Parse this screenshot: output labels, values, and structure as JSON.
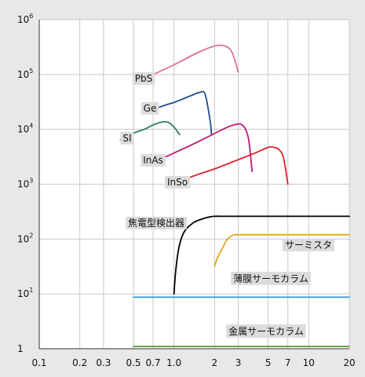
{
  "chart_data": {
    "type": "line",
    "title": "",
    "xlabel": "",
    "ylabel": "",
    "x_scale": "log",
    "y_scale": "log",
    "xlim": [
      0.1,
      20
    ],
    "ylim": [
      1,
      1000000
    ],
    "grid": true,
    "x_ticks": [
      {
        "value": 0.1,
        "label": "0.1"
      },
      {
        "value": 0.2,
        "label": "0.2"
      },
      {
        "value": 0.3,
        "label": "0.3"
      },
      {
        "value": 0.5,
        "label": "0.5"
      },
      {
        "value": 0.7,
        "label": "0.7"
      },
      {
        "value": 1.0,
        "label": "1.0"
      },
      {
        "value": 2,
        "label": "2"
      },
      {
        "value": 3,
        "label": "3"
      },
      {
        "value": 5,
        "label": "5"
      },
      {
        "value": 7,
        "label": "7"
      },
      {
        "value": 10,
        "label": "10"
      },
      {
        "value": 20,
        "label": "20"
      }
    ],
    "y_ticks": [
      {
        "value": 1,
        "base": "1",
        "exp": ""
      },
      {
        "value": 10,
        "base": "10",
        "exp": "1"
      },
      {
        "value": 100,
        "base": "10",
        "exp": "2"
      },
      {
        "value": 1000,
        "base": "10",
        "exp": "3"
      },
      {
        "value": 10000,
        "base": "10",
        "exp": "4"
      },
      {
        "value": 100000,
        "base": "10",
        "exp": "5"
      },
      {
        "value": 1000000,
        "base": "10",
        "exp": "6"
      }
    ],
    "series": [
      {
        "name": "PbS",
        "color": "#d9709f",
        "x": [
          0.7,
          1.0,
          1.5,
          2.0,
          2.4,
          2.7,
          3.0
        ],
        "y": [
          100000,
          150000,
          250000,
          330000,
          330000,
          250000,
          110000
        ]
      },
      {
        "name": "Ge",
        "color": "#1c4d94",
        "x": [
          0.6,
          0.8,
          1.0,
          1.2,
          1.4,
          1.55,
          1.7,
          1.85,
          1.9
        ],
        "y": [
          20000,
          26000,
          31000,
          37000,
          43000,
          47000,
          44000,
          15000,
          8000
        ]
      },
      {
        "name": "SI",
        "color": "#2e7d5e",
        "x": [
          0.4,
          0.5,
          0.6,
          0.7,
          0.8,
          0.9,
          1.0,
          1.1
        ],
        "y": [
          6500,
          8500,
          10000,
          12000,
          13500,
          13500,
          11000,
          8000
        ]
      },
      {
        "name": "InAs",
        "color": "#c2187a",
        "x": [
          0.7,
          1.0,
          1.5,
          2.0,
          2.5,
          3.0,
          3.2,
          3.4,
          3.6,
          3.8
        ],
        "y": [
          2500,
          3700,
          5900,
          8400,
          11000,
          12500,
          12000,
          10000,
          6000,
          1700
        ]
      },
      {
        "name": "InSo",
        "color": "#e2202a",
        "x": [
          1.0,
          1.5,
          2.0,
          3.0,
          4.0,
          5.0,
          5.5,
          6.0,
          6.5,
          7.0
        ],
        "y": [
          1050,
          1500,
          1900,
          2800,
          3700,
          4700,
          4700,
          4300,
          3000,
          1000
        ]
      },
      {
        "name": "焦電型検出器",
        "color": "#000000",
        "x": [
          1.0,
          1.02,
          1.05,
          1.1,
          1.2,
          1.4,
          1.6,
          1.8,
          2.0,
          2.5,
          5,
          10,
          20
        ],
        "y": [
          10,
          20,
          40,
          80,
          140,
          200,
          230,
          250,
          260,
          260,
          260,
          260,
          260
        ]
      },
      {
        "name": "サーミスタ",
        "color": "#e0a81c",
        "x": [
          2.0,
          2.1,
          2.3,
          2.5,
          2.8,
          3.0,
          5,
          10,
          20
        ],
        "y": [
          32,
          45,
          70,
          100,
          120,
          120,
          120,
          120,
          120
        ]
      },
      {
        "name": "薄膜サーモカラム",
        "color": "#3399cc",
        "x": [
          0.5,
          20
        ],
        "y": [
          8.7,
          8.7
        ]
      },
      {
        "name": "金属サーモカラム",
        "color": "#5a9a3a",
        "x": [
          0.5,
          20
        ],
        "y": [
          1.1,
          1.1
        ]
      }
    ],
    "annotations": [
      {
        "text": "PbS",
        "series": "PbS"
      },
      {
        "text": "Ge",
        "series": "Ge"
      },
      {
        "text": "SI",
        "series": "SI"
      },
      {
        "text": "InAs",
        "series": "InAs"
      },
      {
        "text": "InSo",
        "series": "InSo"
      },
      {
        "text": "焦電型検出器",
        "series": "焦電型検出器"
      },
      {
        "text": "サーミスタ",
        "series": "サーミスタ"
      },
      {
        "text": "薄膜サーモカラム",
        "series": "薄膜サーモカラム"
      },
      {
        "text": "金属サーモカラム",
        "series": "金属サーモカラム"
      }
    ]
  }
}
